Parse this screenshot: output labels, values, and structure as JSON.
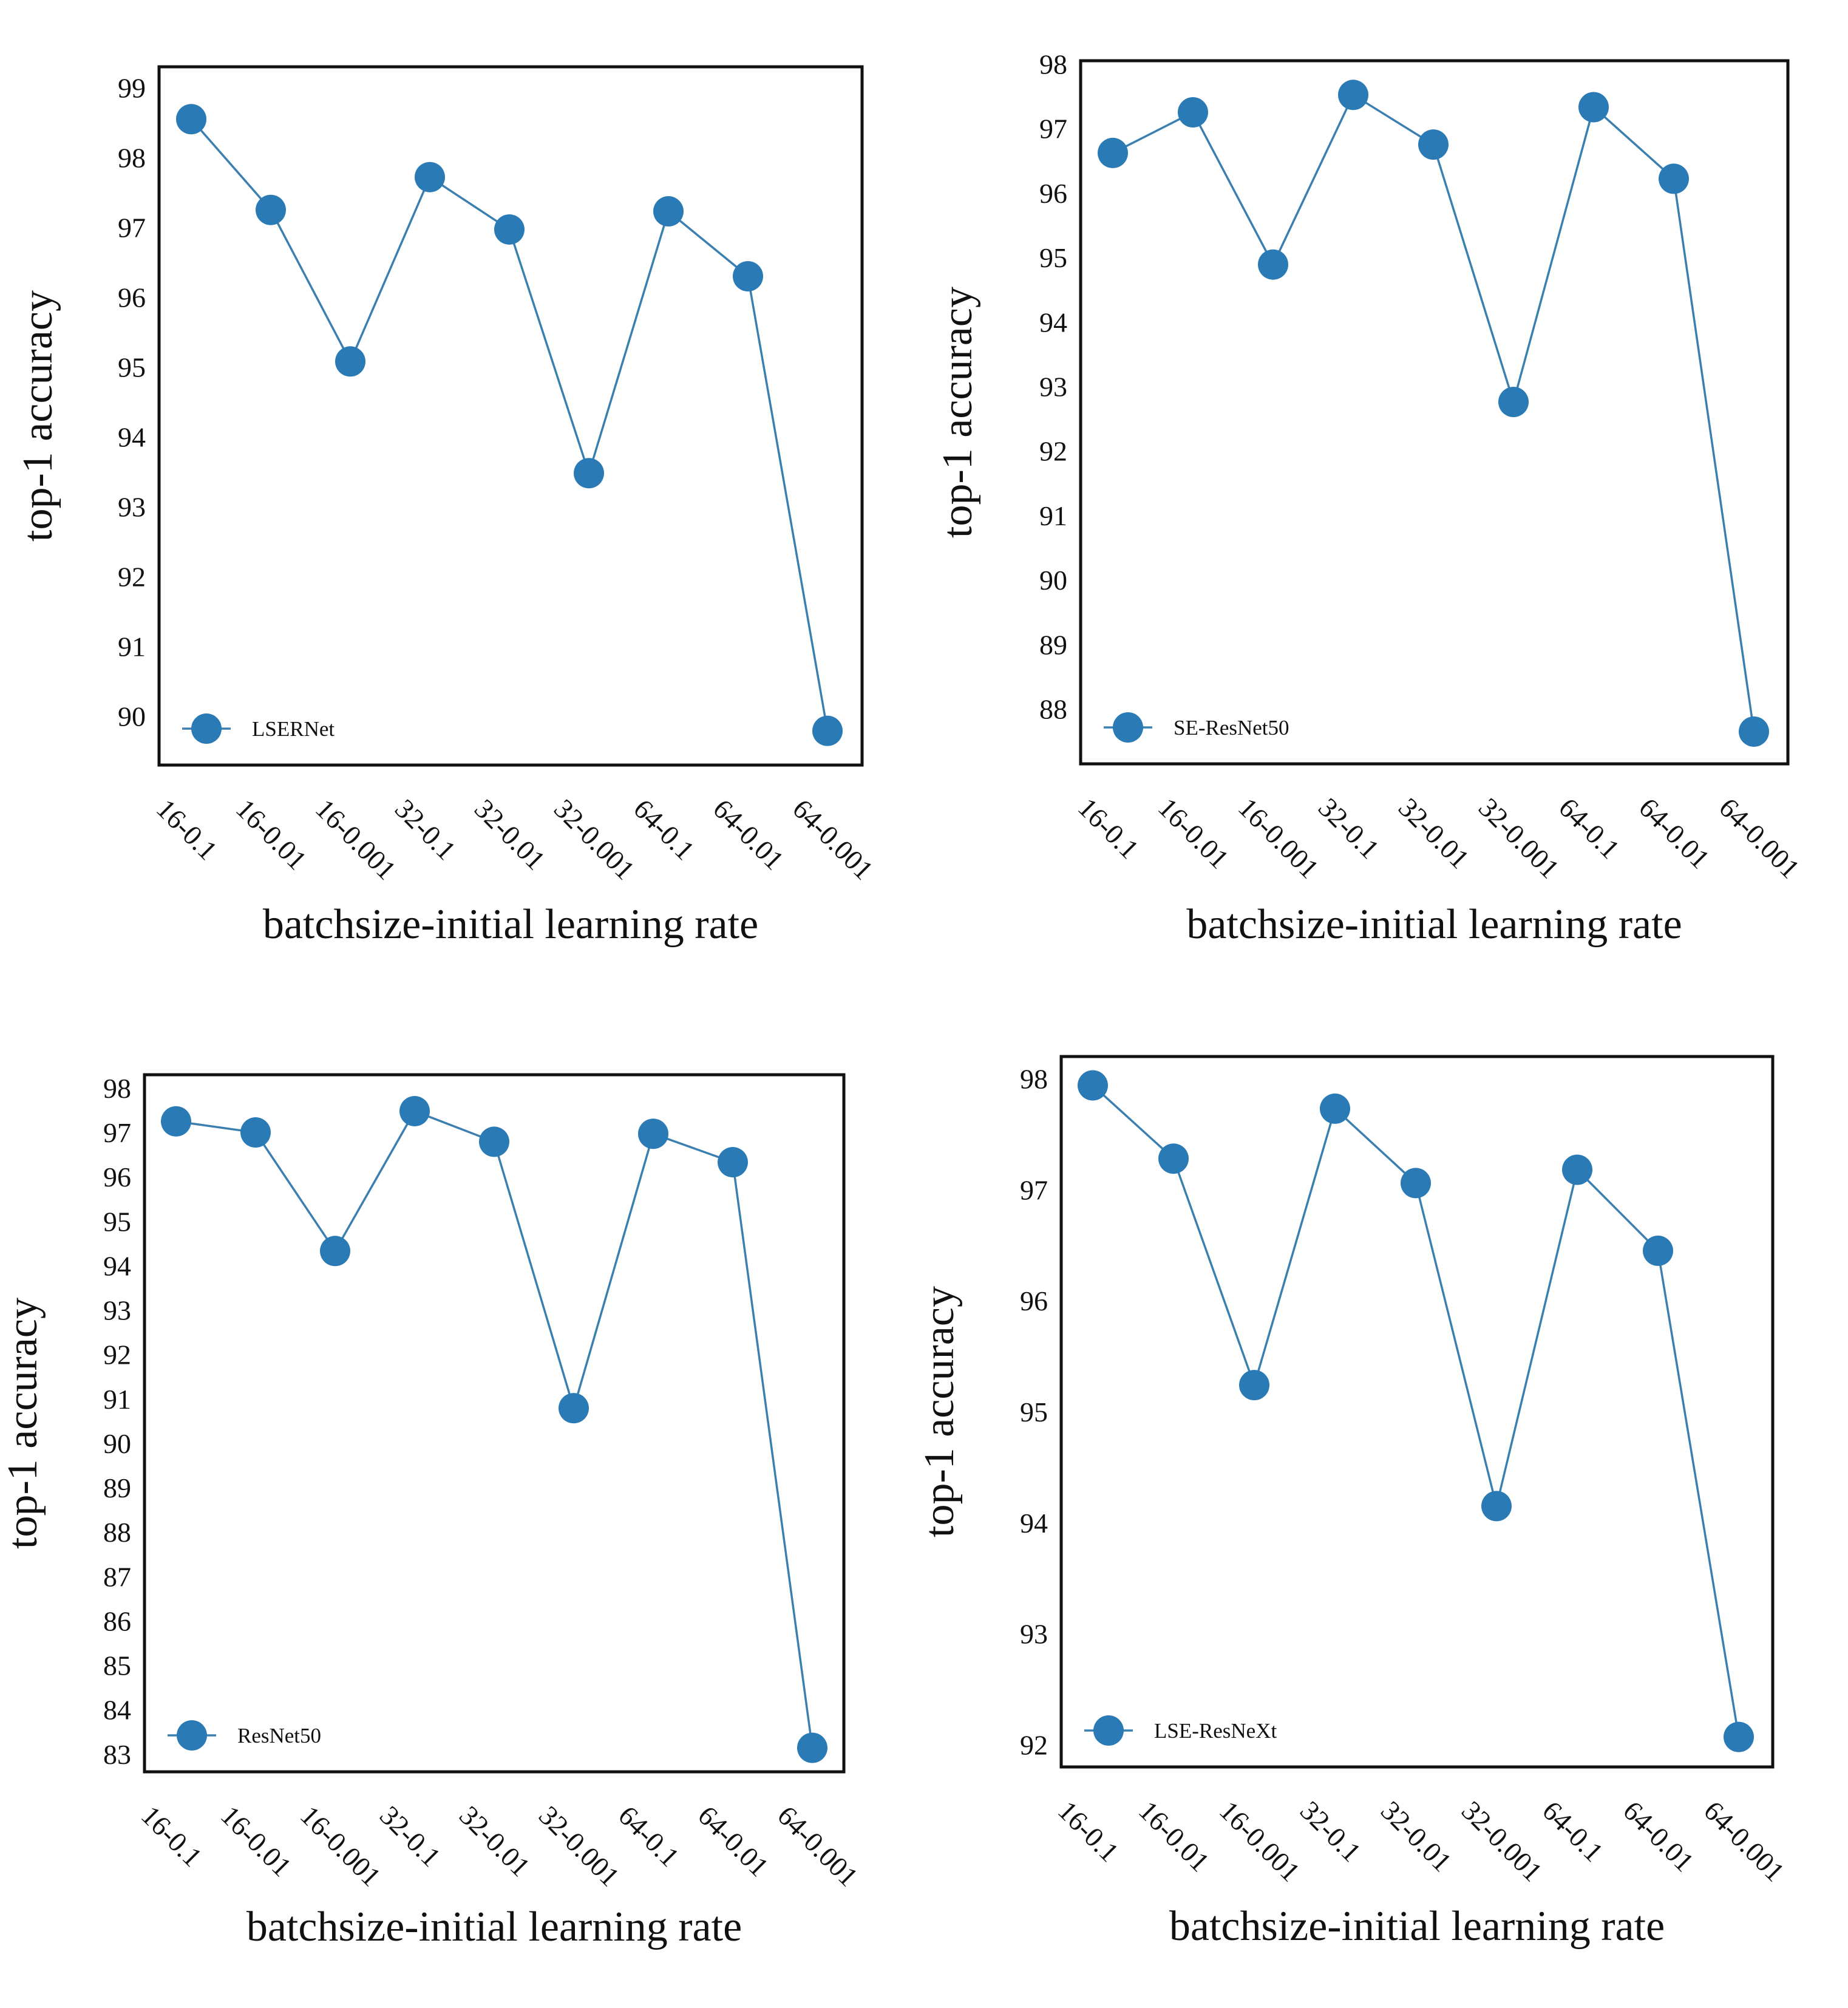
{
  "figure": {
    "marker_color": "#2a7ab6",
    "line_color": "#3a7fb0",
    "frame_color": "#111111"
  },
  "chart_data": [
    {
      "type": "line",
      "legend": "LSERNet",
      "legend_position": "bottom-left",
      "xlabel": "batchsize-initial learning rate",
      "ylabel": "top-1 accuracy",
      "categories": [
        "16-0.1",
        "16-0.01",
        "16-0.001",
        "32-0.1",
        "32-0.01",
        "32-0.001",
        "64-0.1",
        "64-0.01",
        "64-0.001"
      ],
      "values": [
        98.55,
        97.25,
        95.08,
        97.72,
        96.97,
        93.48,
        97.23,
        96.3,
        89.79
      ],
      "yticks": [
        90,
        91,
        92,
        93,
        94,
        95,
        96,
        97,
        98,
        99
      ],
      "ylim": [
        89.3,
        99.3
      ],
      "grid": false
    },
    {
      "type": "line",
      "legend": "SE-ResNet50",
      "legend_position": "bottom-left",
      "xlabel": "batchsize-initial learning rate",
      "ylabel": "top-1 accuracy",
      "categories": [
        "16-0.1",
        "16-0.01",
        "16-0.001",
        "32-0.1",
        "32-0.01",
        "32-0.001",
        "64-0.1",
        "64-0.01",
        "64-0.001"
      ],
      "values": [
        96.62,
        97.25,
        94.89,
        97.52,
        96.75,
        92.76,
        97.33,
        96.22,
        87.65
      ],
      "yticks": [
        88,
        89,
        90,
        91,
        92,
        93,
        94,
        95,
        96,
        97,
        98
      ],
      "ylim": [
        87.15,
        98.05
      ],
      "grid": false
    },
    {
      "type": "line",
      "legend": "ResNet50",
      "legend_position": "bottom-left",
      "xlabel": "batchsize-initial learning rate",
      "ylabel": "top-1 accuracy",
      "categories": [
        "16-0.1",
        "16-0.01",
        "16-0.001",
        "32-0.1",
        "32-0.01",
        "32-0.001",
        "64-0.1",
        "64-0.01",
        "64-0.001"
      ],
      "values": [
        97.25,
        97.0,
        94.33,
        97.48,
        96.79,
        90.79,
        96.97,
        96.33,
        83.14
      ],
      "yticks": [
        83,
        84,
        85,
        86,
        87,
        88,
        89,
        90,
        91,
        92,
        93,
        94,
        95,
        96,
        97,
        98
      ],
      "ylim": [
        82.6,
        98.3
      ],
      "grid": false
    },
    {
      "type": "line",
      "legend": "LSE-ResNeXt",
      "legend_position": "bottom-left",
      "xlabel": "batchsize-initial learning rate",
      "ylabel": "top-1 accuracy",
      "categories": [
        "16-0.1",
        "16-0.01",
        "16-0.001",
        "32-0.1",
        "32-0.01",
        "32-0.001",
        "64-0.1",
        "64-0.01",
        "64-0.001"
      ],
      "values": [
        97.94,
        97.28,
        95.24,
        97.73,
        97.06,
        94.15,
        97.18,
        96.45,
        92.07
      ],
      "yticks": [
        92,
        93,
        94,
        95,
        96,
        97,
        98
      ],
      "ylim": [
        91.8,
        98.2
      ],
      "grid": false
    }
  ]
}
